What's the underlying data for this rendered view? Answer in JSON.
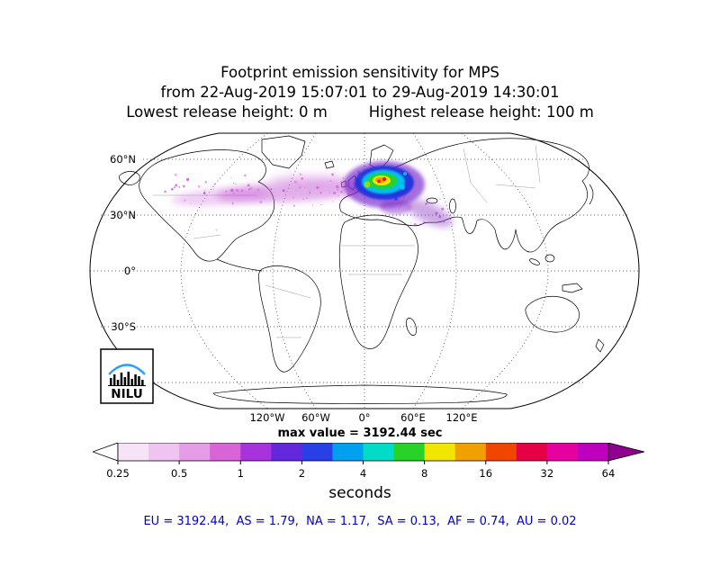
{
  "title": {
    "line1": "Footprint emission sensitivity for MPS",
    "line2": "from 22-Aug-2019 15:07:01 to 29-Aug-2019 14:30:01",
    "release_low": "Lowest release height: 0 m",
    "release_high": "Highest release height: 100 m"
  },
  "map": {
    "lat_labels": [
      "60°N",
      "30°N",
      "0°",
      "30°S"
    ],
    "lon_labels": [
      "120°W",
      "60°W",
      "0°",
      "60°E",
      "120°E"
    ],
    "logo_text": "NILU",
    "max_value_label": "max value = 3192.44 sec"
  },
  "colorbar": {
    "tick_labels": [
      "0.25",
      "0.5",
      "1",
      "2",
      "4",
      "8",
      "16",
      "32",
      "64"
    ],
    "unit_label": "seconds",
    "arrow_left_color": "#ffffff",
    "arrow_right_color": "#8e008e",
    "segment_colors": [
      "#f7e3f7",
      "#f0c4f0",
      "#e79ce7",
      "#d864d8",
      "#a832dc",
      "#6428dc",
      "#2840e6",
      "#00a0f0",
      "#00dcc8",
      "#28d228",
      "#f0e600",
      "#f0a000",
      "#f04600",
      "#e60046",
      "#e600a0",
      "#be00be"
    ]
  },
  "footer": {
    "text": "EU = 3192.44,  AS = 1.79,  NA = 1.17,  SA = 0.13,  AF = 0.74,  AU = 0.02",
    "color": "#0000cc"
  },
  "chart_data": {
    "type": "heatmap",
    "title": "Footprint emission sensitivity for MPS",
    "period_from": "22-Aug-2019 15:07:01",
    "period_to": "29-Aug-2019 14:30:01",
    "lowest_release_height_m": 0,
    "highest_release_height_m": 100,
    "units": "seconds",
    "max_value_sec": 3192.44,
    "colorbar_ticks": [
      0.25,
      0.5,
      1,
      2,
      4,
      8,
      16,
      32,
      64
    ],
    "colorbar_scale": "log2",
    "map_graticule_lat": [
      "60N",
      "30N",
      "0",
      "30S"
    ],
    "map_graticule_lon": [
      "120W",
      "60W",
      "0",
      "60E",
      "120E"
    ],
    "region_totals": {
      "EU": 3192.44,
      "AS": 1.79,
      "NA": 1.17,
      "SA": 0.13,
      "AF": 0.74,
      "AU": 0.02
    },
    "notes": "Emission sensitivity plume centered over central Europe, extending west across the North Atlantic"
  }
}
